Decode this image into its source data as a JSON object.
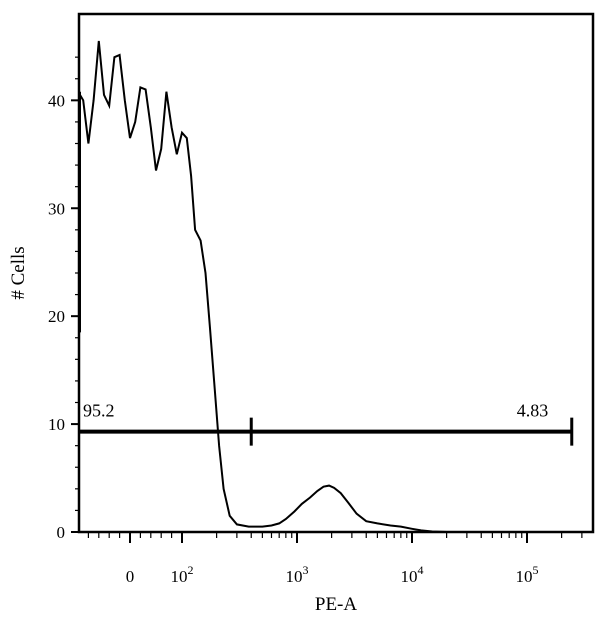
{
  "chart_data": {
    "type": "line",
    "title": "",
    "xlabel": "PE-A",
    "ylabel": "# Cells",
    "x_scale": "biexponential",
    "ylim": [
      0,
      48
    ],
    "yticks": [
      0,
      10,
      20,
      30,
      40
    ],
    "xticks": [
      {
        "label": "0",
        "value": 0
      },
      {
        "label": "10",
        "exp": "2",
        "value": 100
      },
      {
        "label": "10",
        "exp": "3",
        "value": 1000
      },
      {
        "label": "10",
        "exp": "4",
        "value": 10000
      },
      {
        "label": "10",
        "exp": "5",
        "value": 100000
      }
    ],
    "grid": false,
    "series": [
      {
        "points": [
          [
            -220,
            23
          ],
          [
            -210,
            18.5
          ],
          [
            -200,
            20.5
          ],
          [
            -190,
            23
          ],
          [
            -180,
            22.5
          ],
          [
            -165,
            25
          ],
          [
            -150,
            31
          ],
          [
            -135,
            37
          ],
          [
            -120,
            40.8
          ],
          [
            -110,
            39.5
          ],
          [
            -100,
            40.5
          ],
          [
            -90,
            40
          ],
          [
            -80,
            36
          ],
          [
            -70,
            40
          ],
          [
            -60,
            45.5
          ],
          [
            -50,
            40.5
          ],
          [
            -40,
            39.5
          ],
          [
            -30,
            44
          ],
          [
            -20,
            44.2
          ],
          [
            -10,
            40
          ],
          [
            0,
            36.5
          ],
          [
            10,
            38
          ],
          [
            20,
            41.2
          ],
          [
            30,
            41
          ],
          [
            40,
            37.5
          ],
          [
            50,
            33.5
          ],
          [
            60,
            35.5
          ],
          [
            70,
            40.8
          ],
          [
            80,
            37.5
          ],
          [
            90,
            35
          ],
          [
            100,
            37
          ],
          [
            110,
            36.5
          ],
          [
            120,
            33
          ],
          [
            130,
            28
          ],
          [
            145,
            27
          ],
          [
            160,
            24
          ],
          [
            175,
            19
          ],
          [
            190,
            14
          ],
          [
            210,
            8
          ],
          [
            230,
            4
          ],
          [
            260,
            1.5
          ],
          [
            300,
            0.7
          ],
          [
            380,
            0.5
          ],
          [
            500,
            0.5
          ],
          [
            600,
            0.6
          ],
          [
            700,
            0.8
          ],
          [
            800,
            1.2
          ],
          [
            950,
            1.9
          ],
          [
            1100,
            2.6
          ],
          [
            1300,
            3.2
          ],
          [
            1500,
            3.8
          ],
          [
            1700,
            4.2
          ],
          [
            1900,
            4.3
          ],
          [
            2100,
            4.1
          ],
          [
            2400,
            3.6
          ],
          [
            2800,
            2.7
          ],
          [
            3300,
            1.7
          ],
          [
            4000,
            1.0
          ],
          [
            5000,
            0.8
          ],
          [
            6500,
            0.6
          ],
          [
            8000,
            0.5
          ],
          [
            10000,
            0.3
          ],
          [
            12000,
            0.15
          ],
          [
            15000,
            0.05
          ],
          [
            20000,
            0
          ],
          [
            100000,
            0
          ],
          [
            250000,
            0
          ]
        ]
      }
    ],
    "gates": [
      {
        "label": "95.2",
        "from": -220,
        "to": 400,
        "y": 9.3
      },
      {
        "label": "4.83",
        "from": 400,
        "to": 250000,
        "y": 9.3
      }
    ]
  }
}
